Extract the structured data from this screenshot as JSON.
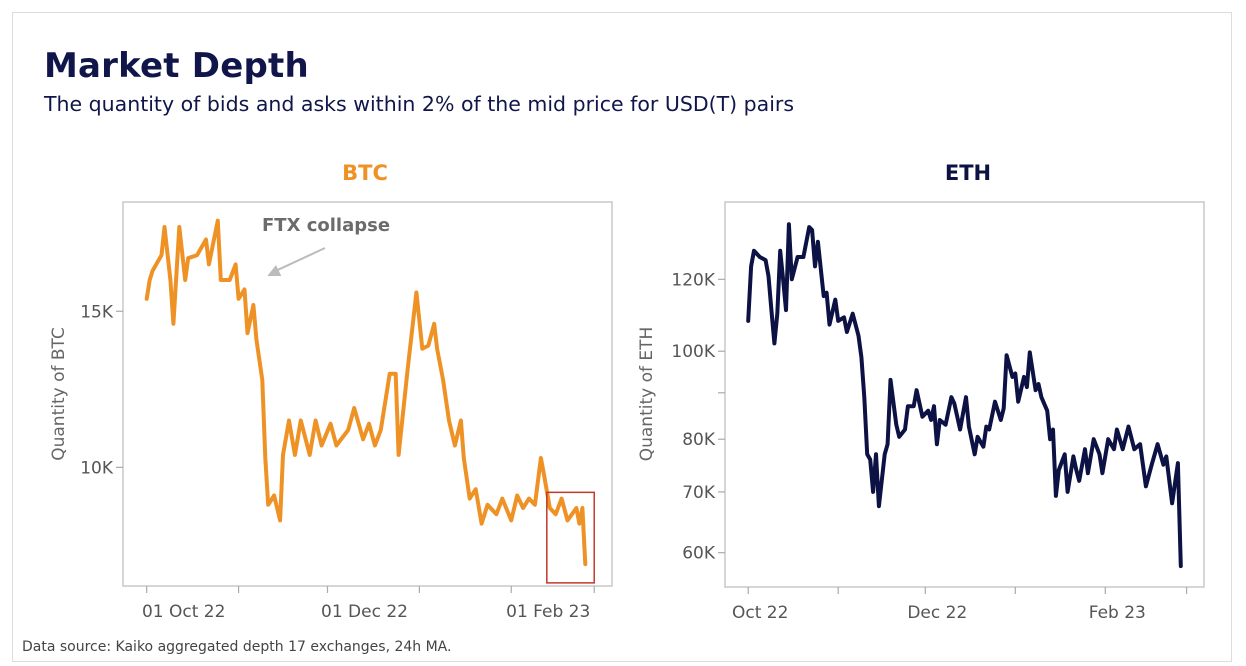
{
  "header": {
    "title": "Market Depth",
    "subtitle": "The quantity of bids and asks within 2% of the mid price for USD(T) pairs"
  },
  "footer": {
    "source": "Data source: Kaiko aggregated depth 17 exchanges, 24h MA."
  },
  "chart_data": [
    {
      "type": "line",
      "title": "BTC",
      "color": "#ef9226",
      "xlabel": "",
      "ylabel": "Quantity of BTC",
      "xlim": [
        "2022-09-23",
        "2023-03-07"
      ],
      "ylim": [
        6200,
        18500
      ],
      "yscale": "linear",
      "grid": false,
      "x_ticks": [
        {
          "date": "2022-10-01",
          "label": "01 Oct 22"
        },
        {
          "date": "2022-11-01",
          "label": ""
        },
        {
          "date": "2022-12-01",
          "label": "01 Dec 22"
        },
        {
          "date": "2023-01-01",
          "label": ""
        },
        {
          "date": "2023-02-01",
          "label": "01 Feb 23"
        },
        {
          "date": "2023-03-01",
          "label": ""
        }
      ],
      "y_ticks": [
        {
          "value": 10000,
          "label": "10K"
        },
        {
          "value": 15000,
          "label": "15K"
        }
      ],
      "annotation": {
        "text": "FTX collapse",
        "date": "2022-11-08",
        "value": 16000,
        "arrow_color": "#bbbbbb"
      },
      "highlight": {
        "x": [
          "2023-02-13",
          "2023-03-01"
        ],
        "y": [
          6300,
          9200
        ],
        "color": "#c0392b"
      },
      "x": [
        "2022-10-01",
        "2022-10-02",
        "2022-10-03",
        "2022-10-06",
        "2022-10-07",
        "2022-10-09",
        "2022-10-10",
        "2022-10-12",
        "2022-10-14",
        "2022-10-15",
        "2022-10-18",
        "2022-10-21",
        "2022-10-22",
        "2022-10-25",
        "2022-10-26",
        "2022-10-29",
        "2022-10-31",
        "2022-11-01",
        "2022-11-03",
        "2022-11-04",
        "2022-11-06",
        "2022-11-07",
        "2022-11-09",
        "2022-11-10",
        "2022-11-11",
        "2022-11-13",
        "2022-11-15",
        "2022-11-16",
        "2022-11-18",
        "2022-11-20",
        "2022-11-22",
        "2022-11-25",
        "2022-11-27",
        "2022-11-29",
        "2022-12-02",
        "2022-12-04",
        "2022-12-08",
        "2022-12-10",
        "2022-12-13",
        "2022-12-15",
        "2022-12-17",
        "2022-12-19",
        "2022-12-22",
        "2022-12-24",
        "2022-12-25",
        "2022-12-28",
        "2022-12-31",
        "2023-01-02",
        "2023-01-04",
        "2023-01-06",
        "2023-01-07",
        "2023-01-09",
        "2023-01-11",
        "2023-01-13",
        "2023-01-15",
        "2023-01-16",
        "2023-01-18",
        "2023-01-20",
        "2023-01-22",
        "2023-01-24",
        "2023-01-27",
        "2023-01-29",
        "2023-02-01",
        "2023-02-03",
        "2023-02-05",
        "2023-02-07",
        "2023-02-09",
        "2023-02-11",
        "2023-02-12",
        "2023-02-14",
        "2023-02-16",
        "2023-02-18",
        "2023-02-20",
        "2023-02-23",
        "2023-02-24",
        "2023-02-25",
        "2023-02-26"
      ],
      "y": [
        15400,
        16000,
        16300,
        16800,
        17700,
        16000,
        14600,
        17700,
        16000,
        16700,
        16800,
        17300,
        16500,
        17900,
        16000,
        16000,
        16500,
        15400,
        15700,
        14300,
        15200,
        14100,
        12800,
        10300,
        8800,
        9100,
        8300,
        10400,
        11500,
        10400,
        11500,
        10400,
        11500,
        10700,
        11400,
        10700,
        11200,
        11900,
        10900,
        11400,
        10700,
        11200,
        13000,
        13000,
        10400,
        13100,
        15600,
        13800,
        13900,
        14600,
        13800,
        12800,
        11500,
        10700,
        11500,
        10300,
        9000,
        9300,
        8200,
        8800,
        8500,
        9000,
        8300,
        9100,
        8700,
        9000,
        8800,
        10300,
        9800,
        8700,
        8500,
        9000,
        8300,
        8700,
        8200,
        8700,
        6900
      ]
    },
    {
      "type": "line",
      "title": "ETH",
      "color": "#0c1243",
      "xlabel": "",
      "ylabel": "Quantity of ETH",
      "xlim": [
        "2022-09-23",
        "2023-03-07"
      ],
      "ylim": [
        55000,
        146000
      ],
      "yscale": "log",
      "grid": false,
      "x_ticks": [
        {
          "date": "2022-10-01",
          "label": "Oct 22"
        },
        {
          "date": "2022-11-01",
          "label": ""
        },
        {
          "date": "2022-12-01",
          "label": "Dec 22"
        },
        {
          "date": "2023-01-01",
          "label": ""
        },
        {
          "date": "2023-02-01",
          "label": "Feb 23"
        },
        {
          "date": "2023-03-01",
          "label": ""
        }
      ],
      "y_ticks": [
        {
          "value": 60000,
          "label": "60K"
        },
        {
          "value": 70000,
          "label": "70K"
        },
        {
          "value": 80000,
          "label": "80K"
        },
        {
          "value": 90000,
          "label": ""
        },
        {
          "value": 100000,
          "label": "100K"
        },
        {
          "value": 120000,
          "label": "120K"
        }
      ],
      "x": [
        "2022-10-01",
        "2022-10-02",
        "2022-10-03",
        "2022-10-05",
        "2022-10-07",
        "2022-10-08",
        "2022-10-09",
        "2022-10-10",
        "2022-10-11",
        "2022-10-12",
        "2022-10-13",
        "2022-10-14",
        "2022-10-15",
        "2022-10-16",
        "2022-10-18",
        "2022-10-20",
        "2022-10-22",
        "2022-10-23",
        "2022-10-24",
        "2022-10-25",
        "2022-10-27",
        "2022-10-28",
        "2022-10-29",
        "2022-10-31",
        "2022-11-01",
        "2022-11-03",
        "2022-11-04",
        "2022-11-06",
        "2022-11-08",
        "2022-11-09",
        "2022-11-10",
        "2022-11-11",
        "2022-11-12",
        "2022-11-13",
        "2022-11-14",
        "2022-11-15",
        "2022-11-17",
        "2022-11-18",
        "2022-11-19",
        "2022-11-21",
        "2022-11-22",
        "2022-11-24",
        "2022-11-25",
        "2022-11-27",
        "2022-11-28",
        "2022-11-30",
        "2022-12-02",
        "2022-12-03",
        "2022-12-04",
        "2022-12-05",
        "2022-12-06",
        "2022-12-08",
        "2022-12-10",
        "2022-12-11",
        "2022-12-13",
        "2022-12-15",
        "2022-12-16",
        "2022-12-18",
        "2022-12-19",
        "2022-12-21",
        "2022-12-22",
        "2022-12-23",
        "2022-12-25",
        "2022-12-27",
        "2022-12-28",
        "2022-12-29",
        "2022-12-31",
        "2023-01-01",
        "2023-01-02",
        "2023-01-04",
        "2023-01-05",
        "2023-01-06",
        "2023-01-08",
        "2023-01-09",
        "2023-01-10",
        "2023-01-12",
        "2023-01-13",
        "2023-01-14",
        "2023-01-15",
        "2023-01-16",
        "2023-01-18",
        "2023-01-19",
        "2023-01-21",
        "2023-01-22",
        "2023-01-23",
        "2023-01-25",
        "2023-01-26",
        "2023-01-28",
        "2023-01-30",
        "2023-01-31",
        "2023-02-02",
        "2023-02-04",
        "2023-02-05",
        "2023-02-07",
        "2023-02-09",
        "2023-02-11",
        "2023-02-13",
        "2023-02-15",
        "2023-02-17",
        "2023-02-19",
        "2023-02-21",
        "2023-02-22",
        "2023-02-24",
        "2023-02-26",
        "2023-02-27"
      ],
      "y": [
        108000,
        124000,
        129000,
        127000,
        126000,
        121000,
        111000,
        102000,
        110000,
        129000,
        120000,
        111000,
        138000,
        120000,
        127000,
        127000,
        137000,
        136000,
        124000,
        132000,
        115000,
        116000,
        107000,
        114000,
        108000,
        109000,
        105000,
        110000,
        104000,
        98500,
        89000,
        77000,
        76000,
        70000,
        77000,
        67500,
        77000,
        79000,
        93000,
        83000,
        80500,
        82000,
        87000,
        87000,
        90600,
        84700,
        86000,
        84000,
        87000,
        79000,
        84000,
        83000,
        89000,
        87600,
        82000,
        89000,
        82600,
        77000,
        80500,
        78500,
        82600,
        82000,
        88000,
        84000,
        86500,
        99000,
        93700,
        94500,
        88000,
        93700,
        91300,
        99700,
        90600,
        92000,
        89000,
        86000,
        80000,
        82000,
        69300,
        74000,
        77000,
        70000,
        76600,
        74000,
        72000,
        78000,
        73400,
        80000,
        77000,
        73400,
        80000,
        78000,
        82000,
        78000,
        82600,
        78000,
        79000,
        71000,
        75000,
        79000,
        75000,
        76600,
        68000,
        75300,
        58000
      ]
    }
  ]
}
